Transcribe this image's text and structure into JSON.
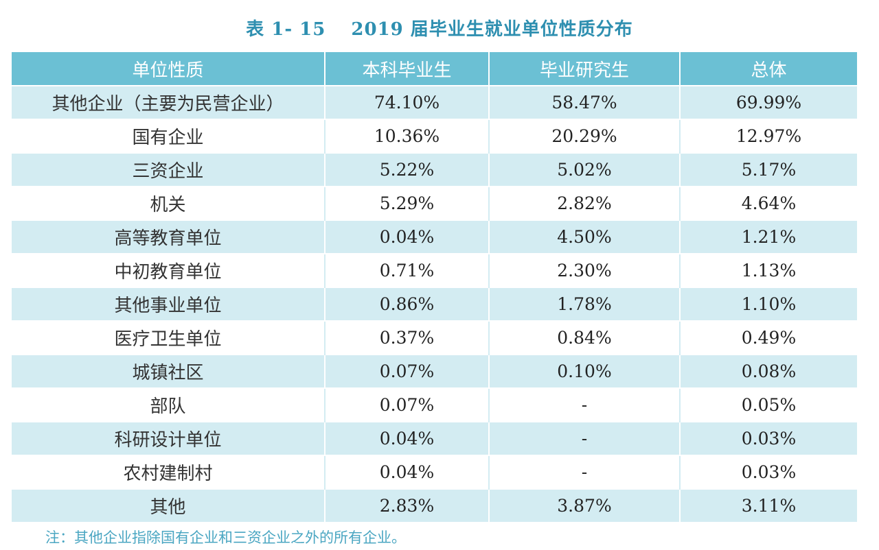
{
  "title": "表 1- 15　 2019 届毕业生就业单位性质分布",
  "header": [
    "单位性质",
    "本科毕业生",
    "毕业研究生",
    "总体"
  ],
  "rows": [
    [
      "其他企业（主要为民营企业）",
      "74.10%",
      "58.47%",
      "69.99%"
    ],
    [
      "国有企业",
      "10.36%",
      "20.29%",
      "12.97%"
    ],
    [
      "三资企业",
      "5.22%",
      "5.02%",
      "5.17%"
    ],
    [
      "机关",
      "5.29%",
      "2.82%",
      "4.64%"
    ],
    [
      "高等教育单位",
      "0.04%",
      "4.50%",
      "1.21%"
    ],
    [
      "中初教育单位",
      "0.71%",
      "2.30%",
      "1.13%"
    ],
    [
      "其他事业单位",
      "0.86%",
      "1.78%",
      "1.10%"
    ],
    [
      "医疗卫生单位",
      "0.37%",
      "0.84%",
      "0.49%"
    ],
    [
      "城镇社区",
      "0.07%",
      "0.10%",
      "0.08%"
    ],
    [
      "部队",
      "0.07%",
      "-",
      "0.05%"
    ],
    [
      "科研设计单位",
      "0.04%",
      "-",
      "0.03%"
    ],
    [
      "农村建制村",
      "0.04%",
      "-",
      "0.03%"
    ],
    [
      "其他",
      "2.83%",
      "3.87%",
      "3.11%"
    ]
  ],
  "note": "注：其他企业指除国有企业和三资企业之外的所有企业。",
  "colors": {
    "title": "#2e8fb0",
    "header_bg": "#6bc0d4",
    "stripe": "#d3ecf2",
    "note": "#4aa6c2"
  }
}
